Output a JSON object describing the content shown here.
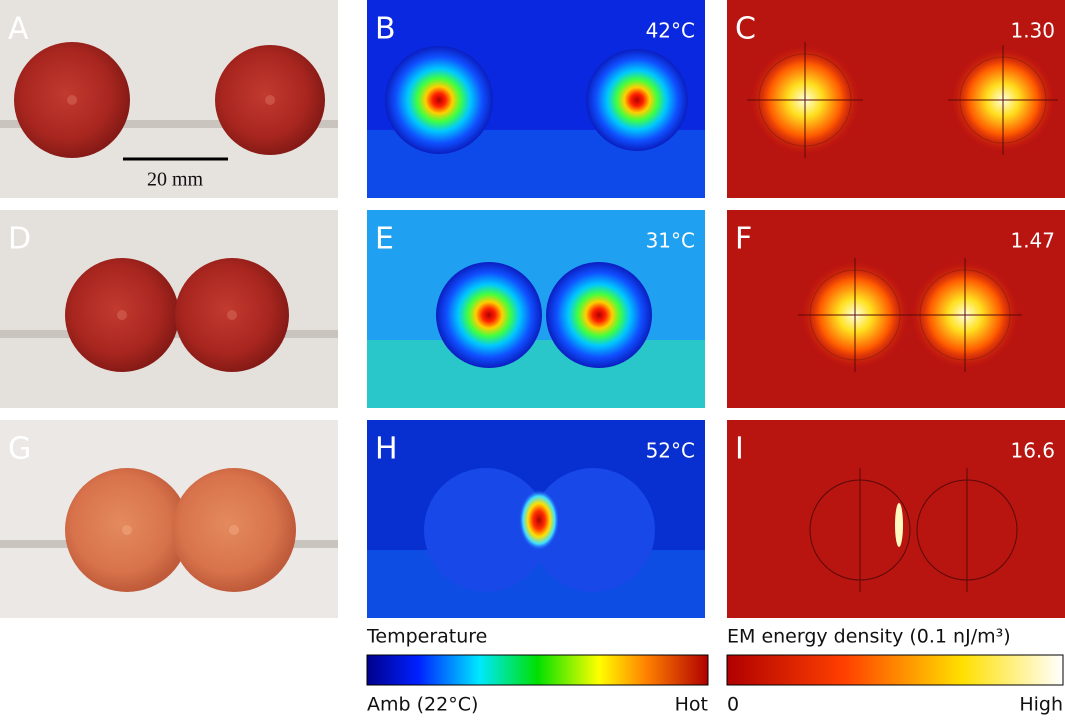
{
  "panels": [
    {
      "label": "A",
      "scale_bar": "20 mm"
    },
    {
      "label": "B",
      "annotation": "42°C"
    },
    {
      "label": "C",
      "annotation": "1.30"
    },
    {
      "label": "D"
    },
    {
      "label": "E",
      "annotation": "31°C"
    },
    {
      "label": "F",
      "annotation": "1.47"
    },
    {
      "label": "G"
    },
    {
      "label": "H",
      "annotation": "52°C"
    },
    {
      "label": "I",
      "annotation": "16.6"
    }
  ],
  "colorbars": {
    "temperature": {
      "title": "Temperature",
      "min_label": "Amb (22°C)",
      "max_label": "Hot"
    },
    "em": {
      "title": "EM energy density (0.1 nJ/m³)",
      "min_label": "0",
      "max_label": "High"
    }
  }
}
